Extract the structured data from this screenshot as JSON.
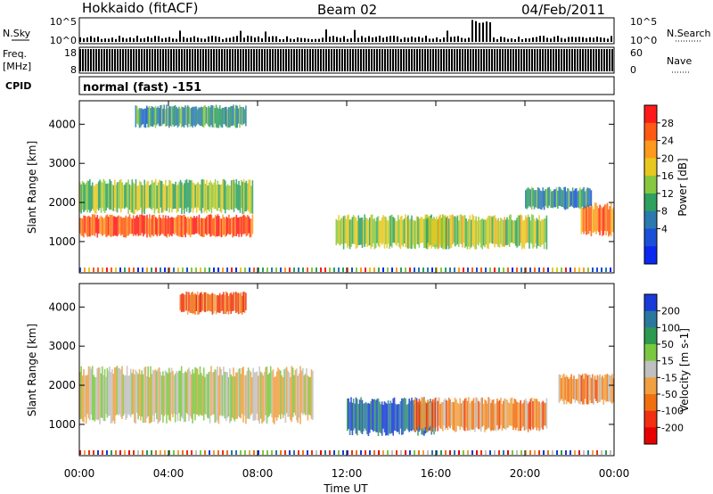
{
  "header": {
    "station": "Hokkaido (fitACF)",
    "beam": "Beam 02",
    "date": "04/Feb/2011"
  },
  "side_labels": {
    "nsky": "N.Sky",
    "nsearch": "N.Search",
    "freq_line1": "Freq.",
    "freq_line2": "[MHz]",
    "nave": "Nave",
    "cpid": "CPID"
  },
  "cpid_text": "normal (fast) -151",
  "chart_data": [
    {
      "type": "line",
      "name": "noise-panel",
      "y_tick_labels_left": [
        "10^5",
        "10^0"
      ],
      "y_tick_labels_right": [
        "10^5",
        "10^0"
      ],
      "x_range": [
        0,
        24
      ]
    },
    {
      "type": "bar",
      "name": "frequency-panel",
      "y_tick_labels_left": [
        "18",
        "8"
      ],
      "y_tick_labels_right": [
        "60",
        "0"
      ],
      "ylim_left": [
        8,
        18
      ],
      "ylim_right": [
        0,
        60
      ],
      "x_range": [
        0,
        24
      ]
    },
    {
      "type": "heatmap",
      "name": "power-panel",
      "ylabel": "Slant Range [km]",
      "ylim": [
        200,
        4600
      ],
      "y_ticks": [
        1000,
        2000,
        3000,
        4000
      ],
      "x_range": [
        0,
        24
      ],
      "colorbar": {
        "label": "Power [dB]",
        "ticks": [
          "28",
          "24",
          "20",
          "16",
          "12",
          "8",
          "4"
        ],
        "colors": [
          "#ff1a1a",
          "#ff5a14",
          "#ff9a1e",
          "#e8c81e",
          "#88c840",
          "#2ea060",
          "#2a7ab0",
          "#1a50d8",
          "#0a28f0"
        ]
      },
      "regions": [
        {
          "t0": 0.0,
          "t1": 7.8,
          "r0": 1100,
          "r1": 1700,
          "level": 0.92
        },
        {
          "t0": 0.0,
          "t1": 7.8,
          "r0": 1700,
          "r1": 2600,
          "level": 0.5
        },
        {
          "t0": 2.5,
          "t1": 7.5,
          "r0": 3900,
          "r1": 4500,
          "level": 0.35
        },
        {
          "t0": 11.5,
          "t1": 16.5,
          "r0": 800,
          "r1": 1700,
          "level": 0.5
        },
        {
          "t0": 15.5,
          "t1": 21.0,
          "r0": 800,
          "r1": 1700,
          "level": 0.55
        },
        {
          "t0": 22.5,
          "t1": 24.0,
          "r0": 1100,
          "r1": 2000,
          "level": 0.8
        },
        {
          "t0": 20.0,
          "t1": 23.0,
          "r0": 1800,
          "r1": 2400,
          "level": 0.3
        }
      ]
    },
    {
      "type": "heatmap",
      "name": "velocity-panel",
      "ylabel": "Slant Range [km]",
      "ylim": [
        200,
        4600
      ],
      "y_ticks": [
        1000,
        2000,
        3000,
        4000
      ],
      "x_range": [
        0,
        24
      ],
      "colorbar": {
        "label": "Velocity [m s-1]",
        "ticks": [
          "200",
          "100",
          "50",
          "15",
          "-15",
          "-50",
          "-100",
          "-200"
        ],
        "colors": [
          "#1a3ad8",
          "#2a78a0",
          "#2e9a50",
          "#7ac840",
          "#c0c0c0",
          "#f0a040",
          "#f07010",
          "#f03010",
          "#e80000"
        ]
      },
      "regions": [
        {
          "t0": 0.0,
          "t1": 10.5,
          "r0": 1000,
          "r1": 2500,
          "level": 0.5
        },
        {
          "t0": 4.5,
          "t1": 7.5,
          "r0": 3800,
          "r1": 4400,
          "level": 0.2
        },
        {
          "t0": 12.0,
          "t1": 16.0,
          "r0": 700,
          "r1": 1700,
          "level": 0.9
        },
        {
          "t0": 15.0,
          "t1": 21.0,
          "r0": 800,
          "r1": 1700,
          "level": 0.3
        },
        {
          "t0": 21.5,
          "t1": 24.0,
          "r0": 1500,
          "r1": 2300,
          "level": 0.35
        }
      ]
    }
  ],
  "x_axis": {
    "label": "Time UT",
    "ticks": [
      "00:00",
      "04:00",
      "08:00",
      "12:00",
      "16:00",
      "20:00",
      "00:00"
    ]
  }
}
